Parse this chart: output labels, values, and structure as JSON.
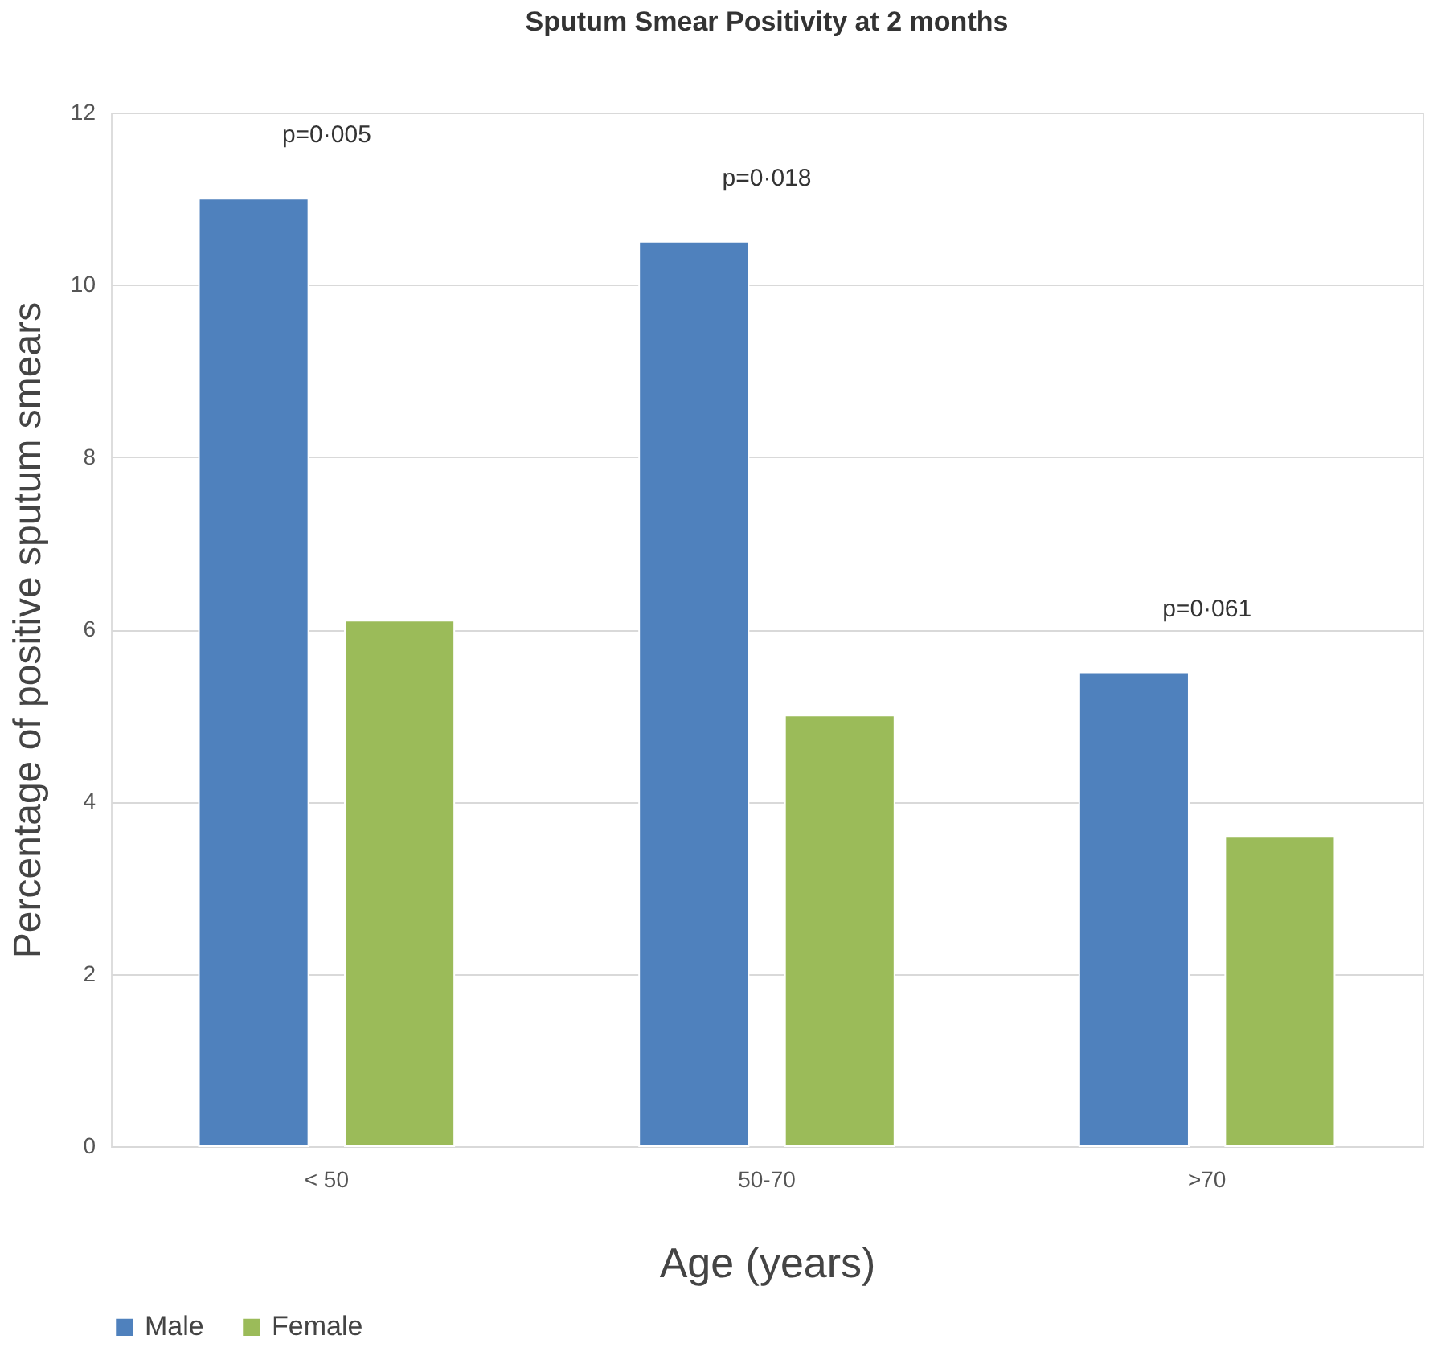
{
  "chart_data": {
    "type": "bar",
    "title": "Sputum Smear Positivity at 2 months",
    "xlabel": "Age (years)",
    "ylabel": "Percentage of positive sputum smears",
    "categories": [
      "< 50",
      "50-70",
      ">70"
    ],
    "series": [
      {
        "name": "Male",
        "color": "#4f81bd",
        "values": [
          11.0,
          10.5,
          5.5
        ]
      },
      {
        "name": "Female",
        "color": "#9bbb59",
        "values": [
          6.1,
          5.0,
          3.6
        ]
      }
    ],
    "ylim": [
      0,
      12
    ],
    "yticks": [
      0,
      2,
      4,
      6,
      8,
      10,
      12
    ],
    "grid": "y",
    "legend": "bottom",
    "annotations": [
      "p=0·005",
      "p=0·018",
      "p=0·061"
    ]
  }
}
